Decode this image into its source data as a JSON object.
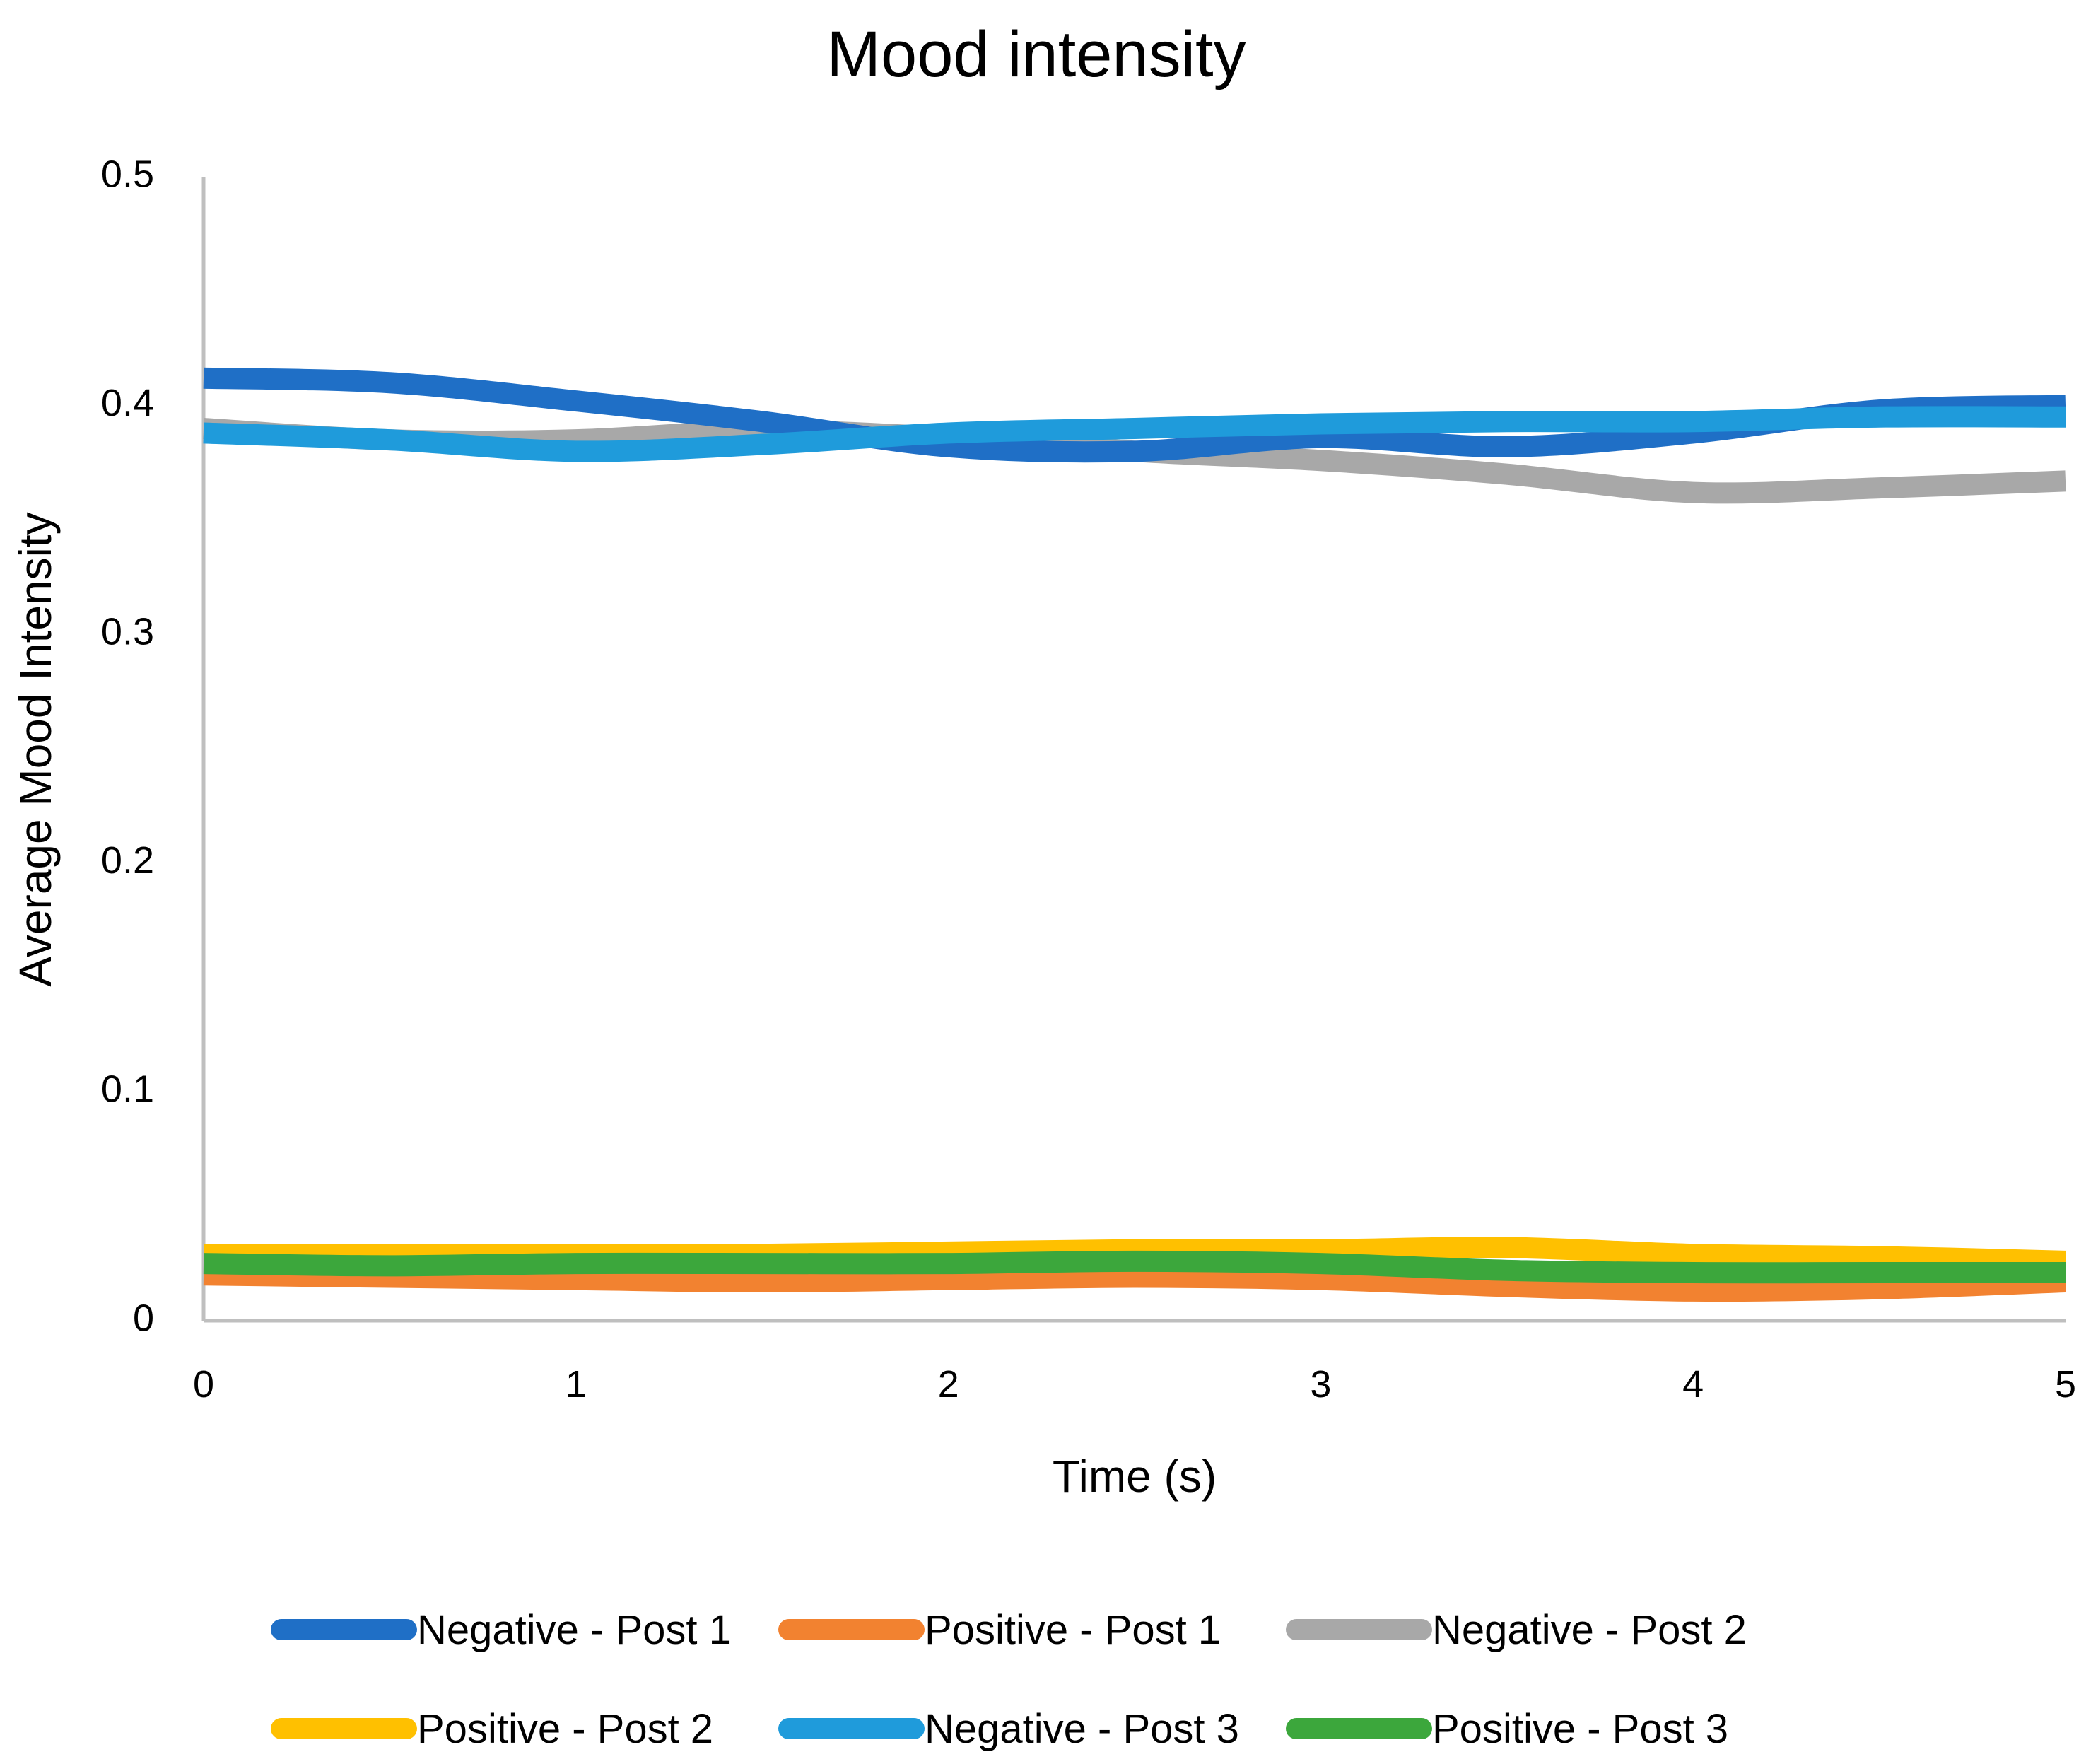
{
  "chart_data": {
    "type": "line",
    "title": "Mood intensity",
    "xlabel": "Time (s)",
    "ylabel": "Average Mood Intensity",
    "xlim": [
      0,
      5
    ],
    "ylim": [
      0,
      0.5
    ],
    "x_ticks": [
      "0",
      "1",
      "2",
      "3",
      "4",
      "5"
    ],
    "y_ticks": [
      "0",
      "0.1",
      "0.2",
      "0.3",
      "0.4",
      "0.5"
    ],
    "grid": false,
    "legend_position": "bottom",
    "x": [
      0,
      0.5,
      1,
      1.5,
      2,
      2.5,
      3,
      3.5,
      4,
      4.5,
      5
    ],
    "series": [
      {
        "name": "Negative - Post 1",
        "color": "#1f6fc6",
        "values": [
          0.412,
          0.41,
          0.402,
          0.393,
          0.382,
          0.38,
          0.386,
          0.382,
          0.388,
          0.398,
          0.4
        ]
      },
      {
        "name": "Positive - Post 1",
        "color": "#f28230",
        "values": [
          0.02,
          0.019,
          0.018,
          0.017,
          0.018,
          0.019,
          0.018,
          0.015,
          0.013,
          0.014,
          0.017
        ]
      },
      {
        "name": "Negative - Post 2",
        "color": "#a8a8a8",
        "values": [
          0.39,
          0.385,
          0.385,
          0.389,
          0.386,
          0.38,
          0.376,
          0.37,
          0.362,
          0.364,
          0.367
        ]
      },
      {
        "name": "Positive - Post 2",
        "color": "#ffc000",
        "values": [
          0.029,
          0.029,
          0.029,
          0.029,
          0.03,
          0.031,
          0.031,
          0.032,
          0.029,
          0.028,
          0.026
        ]
      },
      {
        "name": "Negative - Post 3",
        "color": "#1f9bdb",
        "values": [
          0.388,
          0.385,
          0.38,
          0.383,
          0.388,
          0.39,
          0.392,
          0.393,
          0.393,
          0.395,
          0.395
        ]
      },
      {
        "name": "Positive - Post 3",
        "color": "#3ca73c",
        "values": [
          0.025,
          0.024,
          0.025,
          0.025,
          0.025,
          0.026,
          0.025,
          0.022,
          0.021,
          0.021,
          0.021
        ]
      }
    ]
  }
}
